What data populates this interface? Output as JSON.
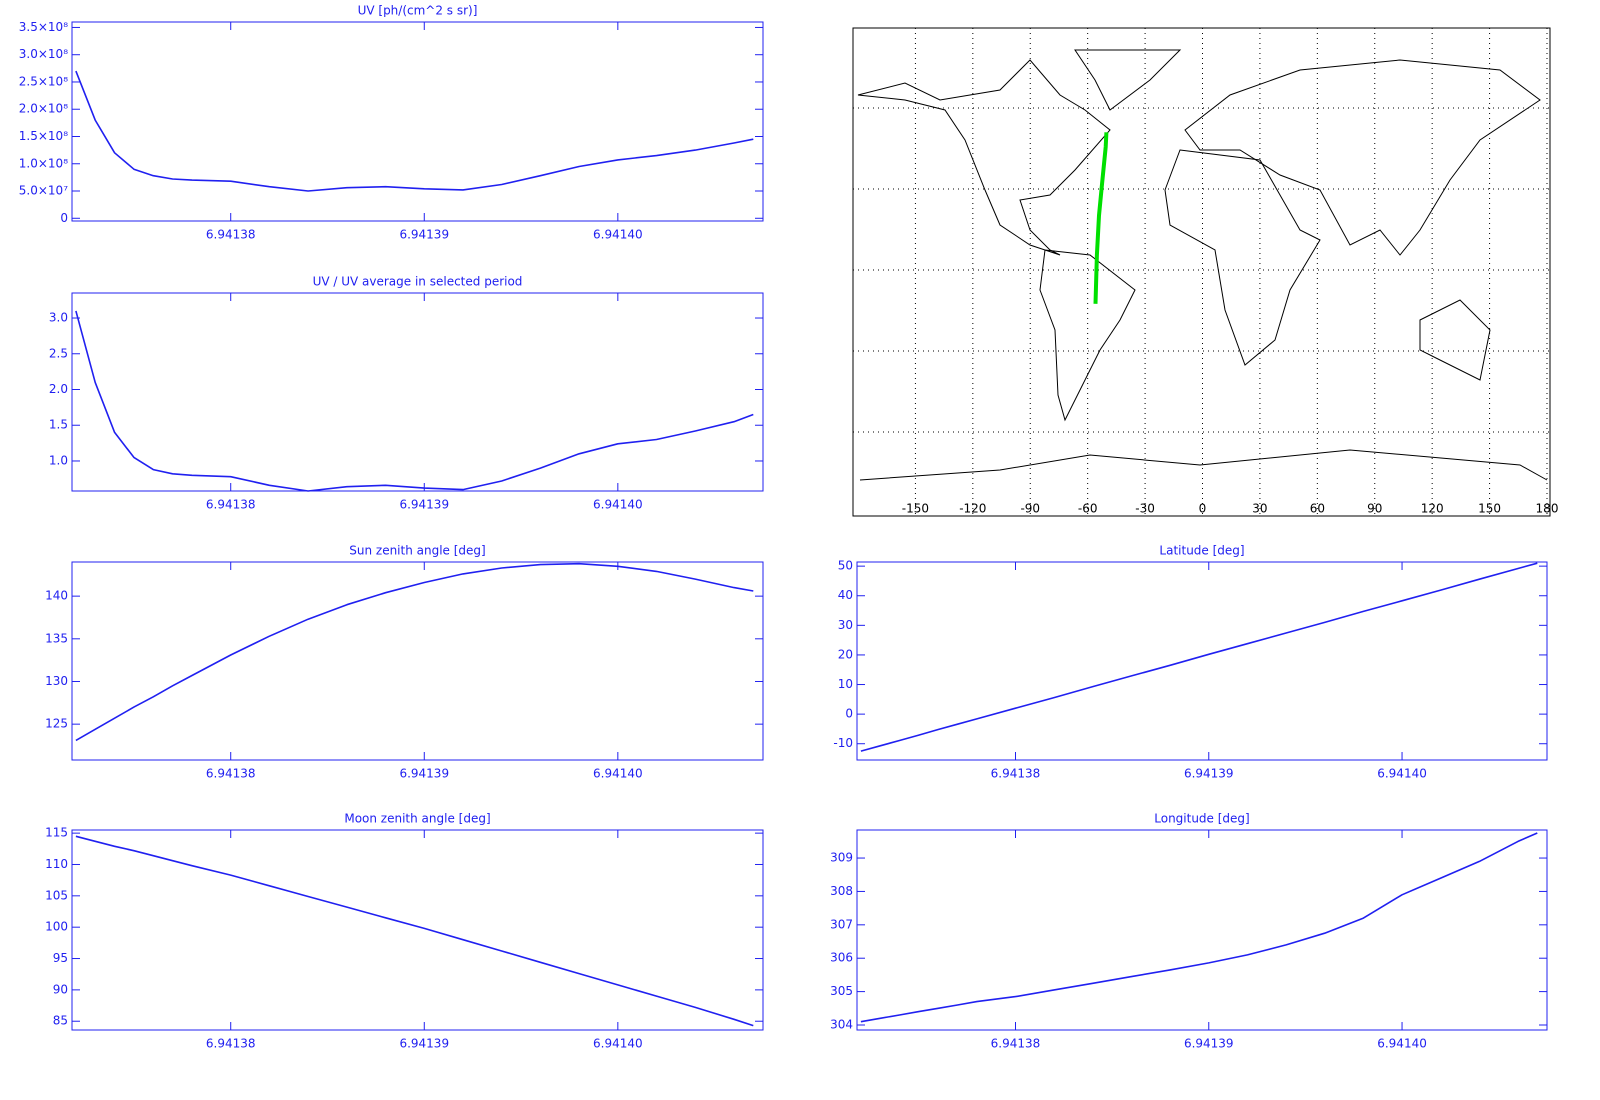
{
  "chart_data": [
    {
      "type": "line",
      "title": "UV [ph/(cm^2 s sr)]",
      "color": "#2020f0",
      "x": [
        6.941372,
        6.941373,
        6.941374,
        6.941375,
        6.941376,
        6.941377,
        6.941378,
        6.94138,
        6.941382,
        6.941384,
        6.941386,
        6.941388,
        6.94139,
        6.941392,
        6.941394,
        6.941396,
        6.941398,
        6.9414,
        6.941402,
        6.941404,
        6.941406,
        6.941407
      ],
      "values": [
        270000000,
        180000000,
        120000000,
        90000000,
        78000000,
        72000000,
        70000000,
        68000000,
        58000000,
        50000000,
        56000000,
        58000000,
        54000000,
        52000000,
        62000000,
        78000000,
        95000000,
        107000000,
        115000000,
        125000000,
        138000000,
        145000000
      ],
      "xlim": [
        6.9413718,
        6.9414075
      ],
      "ylim": [
        -5000000,
        360000000
      ],
      "xticks": [
        6.94138,
        6.94139,
        {
          "value": 6.9414,
          "label": "6.94140"
        }
      ],
      "yticks": [
        0,
        {
          "value": 50000000,
          "label": "5.0×10⁷"
        },
        {
          "value": 100000000,
          "label": "1.0×10⁸"
        },
        {
          "value": 150000000,
          "label": "1.5×10⁸"
        },
        {
          "value": 200000000,
          "label": "2.0×10⁸"
        },
        {
          "value": 250000000,
          "label": "2.5×10⁸"
        },
        {
          "value": 300000000,
          "label": "3.0×10⁸"
        },
        {
          "value": 350000000,
          "label": "3.5×10⁸"
        }
      ]
    },
    {
      "type": "line",
      "title": "UV / UV average in selected period",
      "color": "#2020f0",
      "x": [
        6.941372,
        6.941373,
        6.941374,
        6.941375,
        6.941376,
        6.941377,
        6.941378,
        6.94138,
        6.941382,
        6.941384,
        6.941386,
        6.941388,
        6.94139,
        6.941392,
        6.941394,
        6.941396,
        6.941398,
        6.9414,
        6.941402,
        6.941404,
        6.941406,
        6.941407
      ],
      "values": [
        3.1,
        2.1,
        1.4,
        1.05,
        0.88,
        0.82,
        0.8,
        0.78,
        0.66,
        0.58,
        0.64,
        0.66,
        0.62,
        0.6,
        0.72,
        0.9,
        1.1,
        1.24,
        1.3,
        1.42,
        1.55,
        1.65
      ],
      "xlim": [
        6.9413718,
        6.9414075
      ],
      "ylim": [
        0.58,
        3.35
      ],
      "xticks": [
        6.94138,
        6.94139,
        {
          "value": 6.9414,
          "label": "6.94140"
        }
      ],
      "yticks": [
        {
          "value": 1,
          "label": "1.0"
        },
        1.5,
        {
          "value": 2,
          "label": "2.0"
        },
        2.5,
        {
          "value": 3,
          "label": "3.0"
        }
      ]
    },
    {
      "type": "line",
      "title": "Sun zenith angle [deg]",
      "color": "#2020f0",
      "x": [
        6.941372,
        6.941373,
        6.941374,
        6.941375,
        6.941376,
        6.941377,
        6.941378,
        6.94138,
        6.941382,
        6.941384,
        6.941386,
        6.941388,
        6.94139,
        6.941392,
        6.941394,
        6.941396,
        6.941398,
        6.9414,
        6.941402,
        6.941404,
        6.941406,
        6.941407
      ],
      "values": [
        123.1,
        124.4,
        125.7,
        127.0,
        128.2,
        129.5,
        130.7,
        133.1,
        135.3,
        137.3,
        139.0,
        140.4,
        141.6,
        142.6,
        143.3,
        143.7,
        143.8,
        143.5,
        142.9,
        142.0,
        141.0,
        140.6
      ],
      "xlim": [
        6.9413718,
        6.9414075
      ],
      "ylim": [
        120.8,
        144
      ],
      "xticks": [
        6.94138,
        6.94139,
        {
          "value": 6.9414,
          "label": "6.94140"
        }
      ],
      "yticks": [
        125,
        130,
        135,
        140
      ]
    },
    {
      "type": "line",
      "title": "Moon zenith angle [deg]",
      "color": "#2020f0",
      "x": [
        6.941372,
        6.941373,
        6.941374,
        6.941375,
        6.941376,
        6.941377,
        6.941378,
        6.94138,
        6.941382,
        6.941384,
        6.941386,
        6.941388,
        6.94139,
        6.941392,
        6.941394,
        6.941396,
        6.941398,
        6.9414,
        6.941402,
        6.941404,
        6.941406,
        6.941407
      ],
      "values": [
        114.5,
        113.7,
        112.9,
        112.2,
        111.4,
        110.6,
        109.8,
        108.3,
        106.6,
        104.9,
        103.2,
        101.5,
        99.8,
        98.0,
        96.2,
        94.4,
        92.6,
        90.8,
        89.0,
        87.2,
        85.3,
        84.3
      ],
      "xlim": [
        6.9413718,
        6.9414075
      ],
      "ylim": [
        83.6,
        115.5
      ],
      "xticks": [
        6.94138,
        6.94139,
        {
          "value": 6.9414,
          "label": "6.94140"
        }
      ],
      "yticks": [
        85,
        90,
        95,
        100,
        105,
        110,
        115
      ]
    },
    {
      "type": "map",
      "color": "#00e000",
      "grid": true,
      "ytick_labels": false,
      "x": [
        -55.9,
        -55.2,
        -54.1,
        -52.6,
        -50.6,
        -50.2
      ],
      "values": [
        -12.5,
        5.6,
        20.2,
        31.0,
        45.6,
        51.0
      ],
      "xlim": [
        -180,
        180
      ],
      "ylim": [
        -90,
        90
      ],
      "xticks": [
        -150,
        -120,
        -90,
        -60,
        -30,
        0,
        30,
        60,
        90,
        120,
        150,
        180
      ],
      "yticks": [
        -60,
        -30,
        0,
        30,
        60
      ]
    },
    {
      "type": "line",
      "title": "Latitude [deg]",
      "color": "#2020f0",
      "x": [
        6.941372,
        6.941373,
        6.941374,
        6.941375,
        6.941376,
        6.941377,
        6.941378,
        6.94138,
        6.941382,
        6.941384,
        6.941386,
        6.941388,
        6.94139,
        6.941392,
        6.941394,
        6.941396,
        6.941398,
        6.9414,
        6.941402,
        6.941404,
        6.941406,
        6.941407
      ],
      "values": [
        -12.5,
        -10.7,
        -8.9,
        -7.1,
        -5.2,
        -3.4,
        -1.6,
        2.0,
        5.6,
        9.3,
        12.9,
        16.5,
        20.2,
        23.8,
        27.4,
        31.0,
        34.7,
        38.3,
        41.9,
        45.6,
        49.2,
        51.0
      ],
      "xlim": [
        6.9413718,
        6.9414075
      ],
      "ylim": [
        -15.5,
        51.4
      ],
      "xticks": [
        6.94138,
        6.94139,
        {
          "value": 6.9414,
          "label": "6.94140"
        }
      ],
      "yticks": [
        -10,
        0,
        10,
        20,
        30,
        40,
        50
      ]
    },
    {
      "type": "line",
      "title": "Longitude [deg]",
      "color": "#2020f0",
      "x": [
        6.941372,
        6.941373,
        6.941374,
        6.941375,
        6.941376,
        6.941377,
        6.941378,
        6.94138,
        6.941382,
        6.941384,
        6.941386,
        6.941388,
        6.94139,
        6.941392,
        6.941394,
        6.941396,
        6.941398,
        6.9414,
        6.941402,
        6.941404,
        6.941406,
        6.941407
      ],
      "values": [
        304.1,
        304.2,
        304.3,
        304.4,
        304.5,
        304.6,
        304.7,
        304.85,
        305.05,
        305.25,
        305.45,
        305.65,
        305.86,
        306.1,
        306.4,
        306.75,
        307.2,
        307.9,
        308.4,
        308.9,
        309.5,
        309.75
      ],
      "xlim": [
        6.9413718,
        6.9414075
      ],
      "ylim": [
        303.85,
        309.84
      ],
      "xticks": [
        6.94138,
        6.94139,
        {
          "value": 6.9414,
          "label": "6.94140"
        }
      ],
      "yticks": [
        304,
        305,
        306,
        307,
        308,
        309
      ]
    }
  ]
}
